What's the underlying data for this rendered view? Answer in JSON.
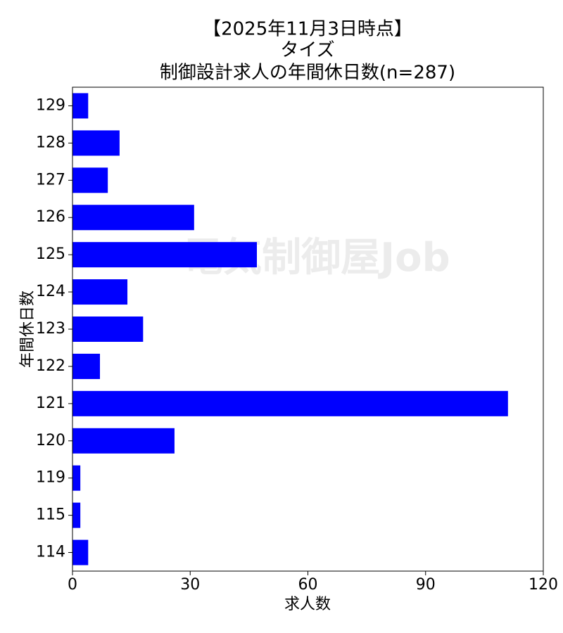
{
  "chart_data": {
    "type": "barh",
    "title": [
      "【2025年11月3日時点】",
      "タイズ",
      "制御設計求人の年間休日数(n=287)"
    ],
    "watermark": "電気制御屋Job",
    "xlabel": "求人数",
    "ylabel": "年間休日数",
    "categories": [
      "129",
      "128",
      "127",
      "126",
      "125",
      "124",
      "123",
      "122",
      "121",
      "120",
      "119",
      "115",
      "114"
    ],
    "values": [
      4,
      12,
      9,
      31,
      47,
      14,
      18,
      7,
      111,
      26,
      2,
      2,
      4
    ],
    "color": "#0000ff",
    "xlim": [
      0,
      120
    ],
    "xticks": [
      0,
      30,
      60,
      90,
      120
    ]
  }
}
